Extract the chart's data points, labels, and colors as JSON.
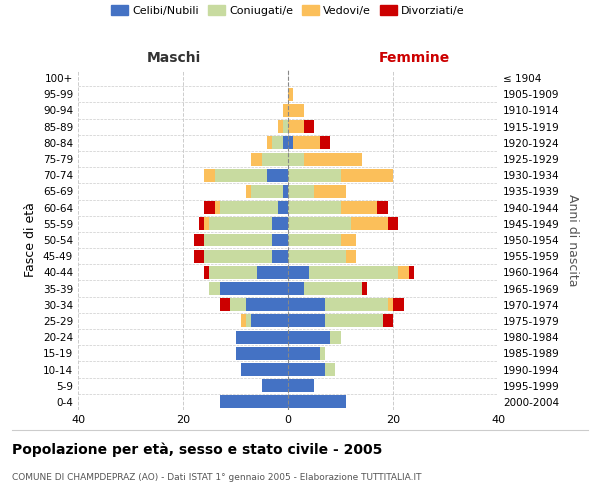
{
  "age_groups": [
    "0-4",
    "5-9",
    "10-14",
    "15-19",
    "20-24",
    "25-29",
    "30-34",
    "35-39",
    "40-44",
    "45-49",
    "50-54",
    "55-59",
    "60-64",
    "65-69",
    "70-74",
    "75-79",
    "80-84",
    "85-89",
    "90-94",
    "95-99",
    "100+"
  ],
  "birth_years": [
    "2000-2004",
    "1995-1999",
    "1990-1994",
    "1985-1989",
    "1980-1984",
    "1975-1979",
    "1970-1974",
    "1965-1969",
    "1960-1964",
    "1955-1959",
    "1950-1954",
    "1945-1949",
    "1940-1944",
    "1935-1939",
    "1930-1934",
    "1925-1929",
    "1920-1924",
    "1915-1919",
    "1910-1914",
    "1905-1909",
    "≤ 1904"
  ],
  "male": {
    "celibi": [
      13,
      5,
      9,
      10,
      10,
      7,
      8,
      13,
      6,
      3,
      3,
      3,
      2,
      1,
      4,
      0,
      1,
      0,
      0,
      0,
      0
    ],
    "coniugati": [
      0,
      0,
      0,
      0,
      0,
      1,
      3,
      2,
      9,
      13,
      13,
      12,
      11,
      6,
      10,
      5,
      2,
      1,
      0,
      0,
      0
    ],
    "vedovi": [
      0,
      0,
      0,
      0,
      0,
      1,
      0,
      0,
      0,
      0,
      0,
      1,
      1,
      1,
      2,
      2,
      1,
      1,
      1,
      0,
      0
    ],
    "divorziati": [
      0,
      0,
      0,
      0,
      0,
      0,
      2,
      0,
      1,
      2,
      2,
      1,
      2,
      0,
      0,
      0,
      0,
      0,
      0,
      0,
      0
    ]
  },
  "female": {
    "nubili": [
      11,
      5,
      7,
      6,
      8,
      7,
      7,
      3,
      4,
      0,
      0,
      0,
      0,
      0,
      0,
      0,
      1,
      0,
      0,
      0,
      0
    ],
    "coniugate": [
      0,
      0,
      2,
      1,
      2,
      11,
      12,
      11,
      17,
      11,
      10,
      12,
      10,
      5,
      10,
      3,
      0,
      0,
      0,
      0,
      0
    ],
    "vedove": [
      0,
      0,
      0,
      0,
      0,
      0,
      1,
      0,
      2,
      2,
      3,
      7,
      7,
      6,
      10,
      11,
      5,
      3,
      3,
      1,
      0
    ],
    "divorziate": [
      0,
      0,
      0,
      0,
      0,
      2,
      2,
      1,
      1,
      0,
      0,
      2,
      2,
      0,
      0,
      0,
      2,
      2,
      0,
      0,
      0
    ]
  },
  "colors": {
    "celibi_nubili": "#4472c4",
    "coniugati": "#c8dba0",
    "vedovi": "#fbbf5a",
    "divorziati": "#cc0000"
  },
  "xlim": [
    -40,
    40
  ],
  "title": "Popolazione per età, sesso e stato civile - 2005",
  "subtitle": "COMUNE DI CHAMPDEPRAZ (AO) - Dati ISTAT 1° gennaio 2005 - Elaborazione TUTTITALIA.IT",
  "xlabel_left": "Maschi",
  "xlabel_right": "Femmine",
  "ylabel_left": "Fasce di età",
  "ylabel_right": "Anni di nascita",
  "xticks": [
    -40,
    -20,
    0,
    20,
    40
  ],
  "background_color": "#ffffff",
  "grid_color": "#cccccc"
}
